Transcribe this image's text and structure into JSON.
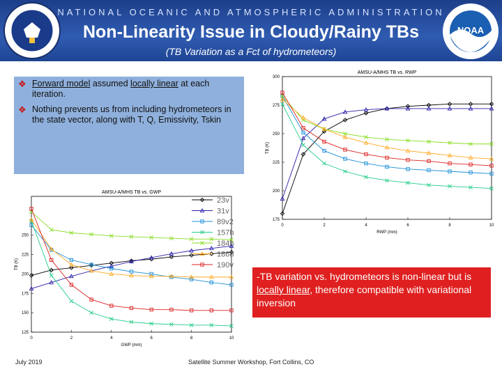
{
  "header": {
    "agency": "NATIONAL OCEANIC AND ATMOSPHERIC ADMINISTRATION",
    "title": "Non-Linearity Issue in Cloudy/Rainy TBs",
    "subtitle": "(TB Variation as a Fct of hydrometeors)"
  },
  "logos": {
    "left": "department-of-commerce-seal",
    "right": "noaa-logo"
  },
  "bullets": [
    {
      "parts": [
        {
          "text": "Forward model",
          "u": true
        },
        {
          "text": " assumed ",
          "u": false
        },
        {
          "text": "locally linear",
          "u": true
        },
        {
          "text": " at each iteration.",
          "u": false
        }
      ]
    },
    {
      "parts": [
        {
          "text": "Nothing prevents us from including hydrometeors in the state vector, along with T, Q, Emissivity, Tskin",
          "u": false
        }
      ]
    }
  ],
  "callout": {
    "parts": [
      {
        "text": "-TB variation vs. hydrometeors is non-linear but is ",
        "u": false
      },
      {
        "text": "locally linear",
        "u": true
      },
      {
        "text": ", therefore compatible with variational inversion",
        "u": false
      }
    ]
  },
  "footer": {
    "date": "July 2019",
    "event": "Satellite Summer Workshop, Fort Collins, CO"
  },
  "colors": {
    "header": "#2f5bb0",
    "bluebox": "#8fb0dc",
    "callout": "#e02020",
    "bullet": "#cc1111"
  },
  "chart_data": [
    {
      "type": "line",
      "title": "AMSU-A/MHS TB vs. RWP",
      "xlabel": "RWP (mm)",
      "ylabel": "TB (K)",
      "xlim": [
        0,
        10
      ],
      "ylim": [
        175,
        300
      ],
      "xticks": [
        0,
        2,
        4,
        6,
        8,
        10
      ],
      "yticks": [
        175,
        200,
        225,
        250,
        275,
        300
      ],
      "x": [
        0,
        1,
        2,
        3,
        4,
        5,
        6,
        7,
        8,
        9,
        10
      ],
      "series": [
        {
          "name": "23v",
          "color": "#000000",
          "marker": "diamond",
          "values": [
            180,
            232,
            252,
            262,
            268,
            272,
            274,
            275,
            276,
            276,
            276
          ]
        },
        {
          "name": "31v",
          "color": "#2a1faa",
          "marker": "triangle",
          "values": [
            193,
            246,
            263,
            269,
            271,
            272,
            272,
            272,
            272,
            272,
            272
          ]
        },
        {
          "name": "89v2",
          "color": "#1c8fd8",
          "marker": "square",
          "values": [
            283,
            251,
            235,
            228,
            224,
            221,
            219,
            218,
            217,
            216,
            215
          ]
        },
        {
          "name": "157h",
          "color": "#22cc88",
          "marker": "x",
          "values": [
            276,
            240,
            224,
            217,
            212,
            209,
            207,
            205,
            204,
            203,
            202
          ]
        },
        {
          "name": "184h",
          "color": "#88dd22",
          "marker": "x",
          "values": [
            283,
            262,
            254,
            250,
            247,
            245,
            244,
            243,
            242,
            241,
            241
          ]
        },
        {
          "name": "186h",
          "color": "#ffaa22",
          "marker": "triangle",
          "values": [
            280,
            264,
            254,
            247,
            242,
            238,
            235,
            233,
            231,
            229,
            228
          ]
        },
        {
          "name": "190v",
          "color": "#dd2222",
          "marker": "square",
          "values": [
            286,
            255,
            243,
            236,
            232,
            229,
            227,
            226,
            224,
            223,
            222
          ]
        }
      ]
    },
    {
      "type": "line",
      "title": "AMSU-A/MHS TB vs. GWP",
      "xlabel": "GWP (mm)",
      "ylabel": "TB (K)",
      "xlim": [
        0,
        10
      ],
      "ylim": [
        125,
        300
      ],
      "xticks": [
        0,
        2,
        4,
        6,
        8,
        10
      ],
      "yticks": [
        125,
        150,
        175,
        200,
        225,
        250
      ],
      "x": [
        0,
        1,
        2,
        3,
        4,
        5,
        6,
        7,
        8,
        9,
        10
      ],
      "series": [
        {
          "name": "23v",
          "color": "#000000",
          "marker": "diamond",
          "values": [
            198,
            205,
            208,
            211,
            214,
            217,
            219,
            222,
            224,
            226,
            228
          ]
        },
        {
          "name": "31v",
          "color": "#2a1faa",
          "marker": "triangle",
          "values": [
            181,
            189,
            197,
            204,
            210,
            216,
            221,
            226,
            230,
            233,
            236
          ]
        },
        {
          "name": "89v2",
          "color": "#1c8fd8",
          "marker": "square",
          "values": [
            263,
            231,
            218,
            212,
            207,
            203,
            200,
            196,
            193,
            189,
            186
          ]
        },
        {
          "name": "157h",
          "color": "#22cc88",
          "marker": "x",
          "values": [
            268,
            198,
            165,
            150,
            142,
            138,
            136,
            135,
            134,
            134,
            133
          ]
        },
        {
          "name": "184h",
          "color": "#88dd22",
          "marker": "x",
          "values": [
            280,
            257,
            253,
            251,
            249,
            248,
            247,
            246,
            245,
            245,
            244
          ]
        },
        {
          "name": "186h",
          "color": "#ffaa22",
          "marker": "triangle",
          "values": [
            270,
            232,
            212,
            204,
            200,
            198,
            197,
            197,
            196,
            196,
            196
          ]
        },
        {
          "name": "190v",
          "color": "#dd2222",
          "marker": "square",
          "values": [
            284,
            218,
            186,
            167,
            159,
            156,
            154,
            154,
            153,
            153,
            153
          ]
        }
      ]
    }
  ]
}
